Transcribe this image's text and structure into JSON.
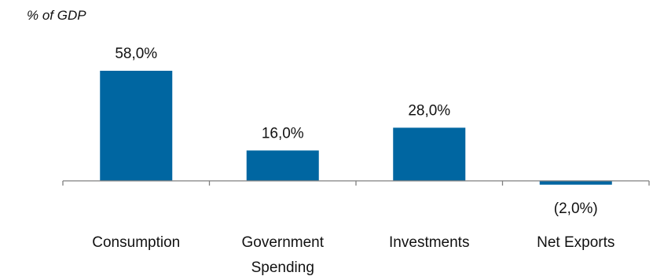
{
  "chart_data": {
    "type": "bar",
    "unit_label": "% of GDP",
    "categories": [
      "Consumption",
      "Government Spending",
      "Investments",
      "Net Exports"
    ],
    "category_lines": [
      [
        "Consumption"
      ],
      [
        "Government",
        "Spending"
      ],
      [
        "Investments"
      ],
      [
        "Net Exports"
      ]
    ],
    "values": [
      58.0,
      16.0,
      28.0,
      -2.0
    ],
    "data_labels": [
      "58,0%",
      "16,0%",
      "28,0%",
      "(2,0%)"
    ],
    "bar_color": "#0066a1",
    "axis_color": "#7f7f7f",
    "ylim": [
      -2,
      58
    ],
    "grid": false,
    "legend": "none"
  }
}
